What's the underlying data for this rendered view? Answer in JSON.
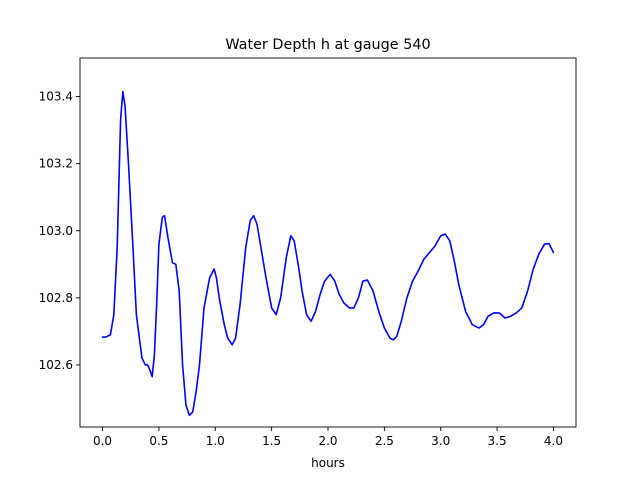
{
  "chart_data": {
    "type": "line",
    "title": "Water Depth h at gauge 540",
    "xlabel": "hours",
    "ylabel": "",
    "xlim": [
      -0.2,
      4.2
    ],
    "ylim": [
      102.415,
      103.515
    ],
    "xticks": [
      0.0,
      0.5,
      1.0,
      1.5,
      2.0,
      2.5,
      3.0,
      3.5,
      4.0
    ],
    "xtick_labels": [
      "0.0",
      "0.5",
      "1.0",
      "1.5",
      "2.0",
      "2.5",
      "3.0",
      "3.5",
      "4.0"
    ],
    "yticks": [
      102.6,
      102.8,
      103.0,
      103.2,
      103.4
    ],
    "ytick_labels": [
      "102.6",
      "102.8",
      "103.0",
      "103.2",
      "103.4"
    ],
    "grid": false,
    "series": [
      {
        "color": "#0000ff",
        "x": [
          0.0,
          0.03,
          0.07,
          0.1,
          0.13,
          0.16,
          0.18,
          0.2,
          0.23,
          0.27,
          0.3,
          0.35,
          0.38,
          0.4,
          0.42,
          0.44,
          0.46,
          0.48,
          0.5,
          0.53,
          0.55,
          0.58,
          0.62,
          0.65,
          0.68,
          0.71,
          0.74,
          0.77,
          0.8,
          0.83,
          0.86,
          0.9,
          0.95,
          0.99,
          1.01,
          1.04,
          1.08,
          1.11,
          1.15,
          1.18,
          1.22,
          1.27,
          1.31,
          1.34,
          1.37,
          1.41,
          1.45,
          1.5,
          1.54,
          1.58,
          1.63,
          1.67,
          1.7,
          1.74,
          1.77,
          1.81,
          1.85,
          1.89,
          1.93,
          1.97,
          2.02,
          2.06,
          2.1,
          2.14,
          2.19,
          2.23,
          2.27,
          2.31,
          2.35,
          2.4,
          2.45,
          2.5,
          2.55,
          2.58,
          2.61,
          2.65,
          2.7,
          2.75,
          2.8,
          2.85,
          2.9,
          2.95,
          3.0,
          3.04,
          3.08,
          3.12,
          3.16,
          3.22,
          3.28,
          3.34,
          3.38,
          3.42,
          3.47,
          3.52,
          3.57,
          3.62,
          3.67,
          3.72,
          3.77,
          3.82,
          3.87,
          3.92,
          3.96,
          4.0
        ],
        "y": [
          102.683,
          102.683,
          102.69,
          102.75,
          102.95,
          103.33,
          103.415,
          103.37,
          103.2,
          102.95,
          102.75,
          102.62,
          102.6,
          102.6,
          102.585,
          102.565,
          102.63,
          102.78,
          102.96,
          103.04,
          103.045,
          102.98,
          102.905,
          102.9,
          102.82,
          102.6,
          102.48,
          102.45,
          102.46,
          102.52,
          102.6,
          102.77,
          102.86,
          102.886,
          102.86,
          102.79,
          102.72,
          102.68,
          102.66,
          102.68,
          102.78,
          102.95,
          103.03,
          103.045,
          103.02,
          102.94,
          102.86,
          102.77,
          102.75,
          102.8,
          102.92,
          102.985,
          102.97,
          102.89,
          102.82,
          102.75,
          102.73,
          102.76,
          102.81,
          102.85,
          102.87,
          102.85,
          102.81,
          102.785,
          102.77,
          102.77,
          102.8,
          102.85,
          102.853,
          102.82,
          102.76,
          102.71,
          102.68,
          102.675,
          102.685,
          102.73,
          102.8,
          102.85,
          102.88,
          102.915,
          102.935,
          102.955,
          102.985,
          102.99,
          102.97,
          102.91,
          102.84,
          102.76,
          102.72,
          102.71,
          102.72,
          102.745,
          102.755,
          102.755,
          102.74,
          102.745,
          102.755,
          102.77,
          102.82,
          102.885,
          102.93,
          102.96,
          102.962,
          102.935
        ]
      }
    ]
  }
}
